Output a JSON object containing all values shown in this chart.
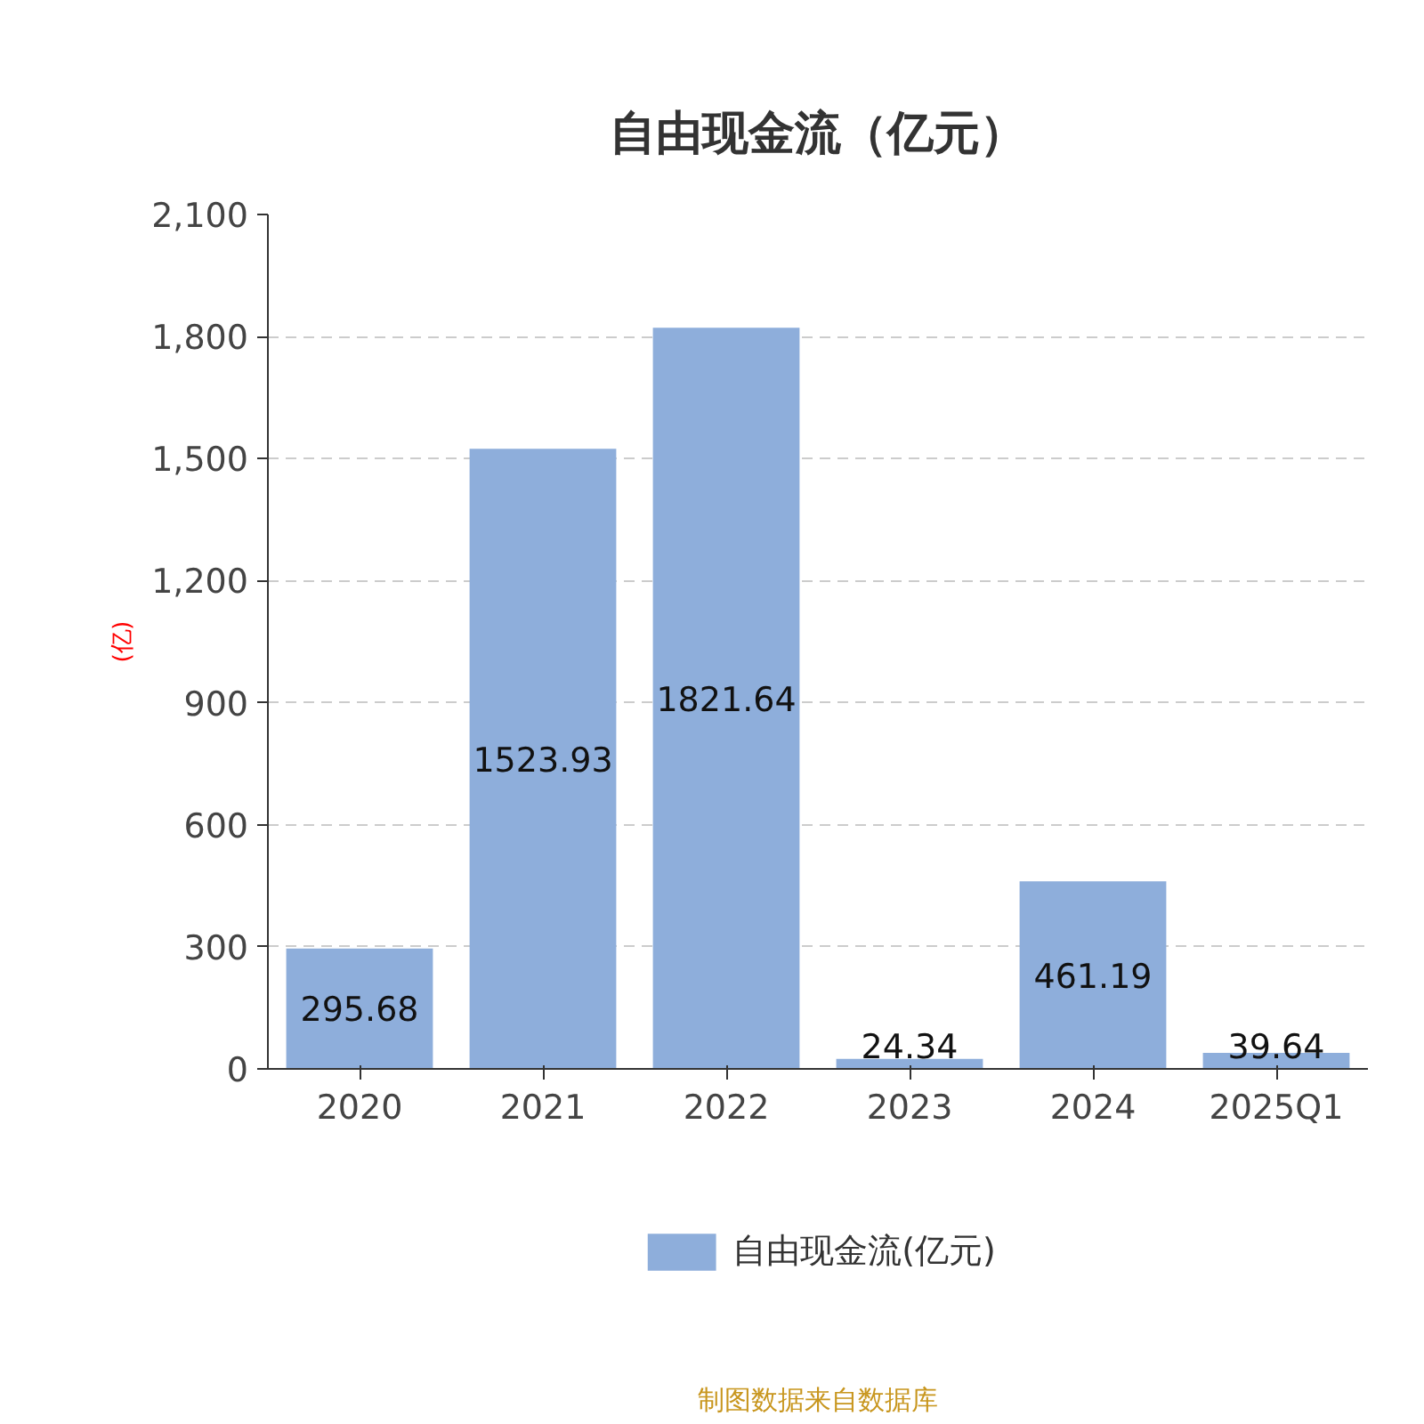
{
  "chart_data": {
    "type": "bar",
    "title": "自由现金流（亿元）",
    "ylabel": "(亿)",
    "categories": [
      "2020",
      "2021",
      "2022",
      "2023",
      "2024",
      "2025Q1"
    ],
    "series": [
      {
        "name": "自由现金流(亿元)",
        "color": "#8eaedb",
        "values": [
          295.68,
          1523.93,
          1821.64,
          24.34,
          461.19,
          39.64
        ]
      }
    ],
    "ylim": [
      0,
      2100
    ],
    "yticks": [
      {
        "value": 0,
        "label": "0"
      },
      {
        "value": 300,
        "label": "300"
      },
      {
        "value": 600,
        "label": "600"
      },
      {
        "value": 900,
        "label": "900"
      },
      {
        "value": 1200,
        "label": "1,200"
      },
      {
        "value": 1500,
        "label": "1,500"
      },
      {
        "value": 1800,
        "label": "1,800"
      },
      {
        "value": 2100,
        "label": "2,100"
      }
    ],
    "grid": "y",
    "legend": "bottom",
    "data_labels": true,
    "annotations": [
      "制图数据来自数据库"
    ]
  }
}
